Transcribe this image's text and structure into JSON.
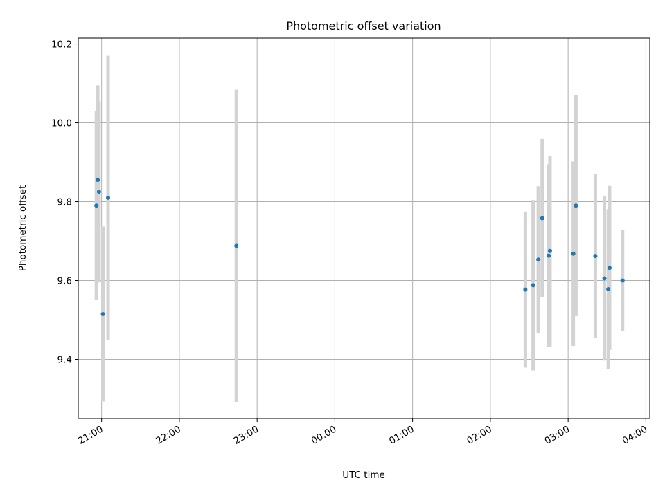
{
  "chart_data": {
    "type": "scatter",
    "title": "Photometric offset variation",
    "xlabel": "UTC time",
    "ylabel": "Photometric offset",
    "x_is_time": true,
    "xlim": [
      "20:42",
      "04:03"
    ],
    "ylim": [
      9.25,
      10.215
    ],
    "grid": true,
    "xticks": [
      "21:00",
      "22:00",
      "23:00",
      "00:00",
      "01:00",
      "02:00",
      "03:00",
      "04:00"
    ],
    "yticks": [
      "9.4",
      "9.6",
      "9.8",
      "10.0",
      "10.2"
    ],
    "series": [
      {
        "marker_color": "#1f77b4",
        "errorbar_color": "#d3d3d3",
        "points": [
          {
            "x": "20:56",
            "y": 9.79,
            "yerr": 0.24
          },
          {
            "x": "20:57",
            "y": 9.855,
            "yerr": 0.24
          },
          {
            "x": "20:58",
            "y": 9.825,
            "yerr": 0.23
          },
          {
            "x": "21:01",
            "y": 9.515,
            "yerr": 0.222
          },
          {
            "x": "21:05",
            "y": 9.81,
            "yerr": 0.36
          },
          {
            "x": "22:44",
            "y": 9.688,
            "yerr": 0.396
          },
          {
            "x": "02:27",
            "y": 9.577,
            "yerr": 0.198
          },
          {
            "x": "02:33",
            "y": 9.588,
            "yerr": 0.216
          },
          {
            "x": "02:37",
            "y": 9.653,
            "yerr": 0.186
          },
          {
            "x": "02:40",
            "y": 9.758,
            "yerr": 0.201
          },
          {
            "x": "02:45",
            "y": 9.663,
            "yerr": 0.232
          },
          {
            "x": "02:46",
            "y": 9.675,
            "yerr": 0.242
          },
          {
            "x": "03:04",
            "y": 9.668,
            "yerr": 0.234
          },
          {
            "x": "03:06",
            "y": 9.79,
            "yerr": 0.28
          },
          {
            "x": "03:21",
            "y": 9.662,
            "yerr": 0.208
          },
          {
            "x": "03:28",
            "y": 9.605,
            "yerr": 0.208
          },
          {
            "x": "03:31",
            "y": 9.578,
            "yerr": 0.203
          },
          {
            "x": "03:32",
            "y": 9.632,
            "yerr": 0.208
          },
          {
            "x": "03:42",
            "y": 9.6,
            "yerr": 0.128
          }
        ]
      }
    ]
  }
}
